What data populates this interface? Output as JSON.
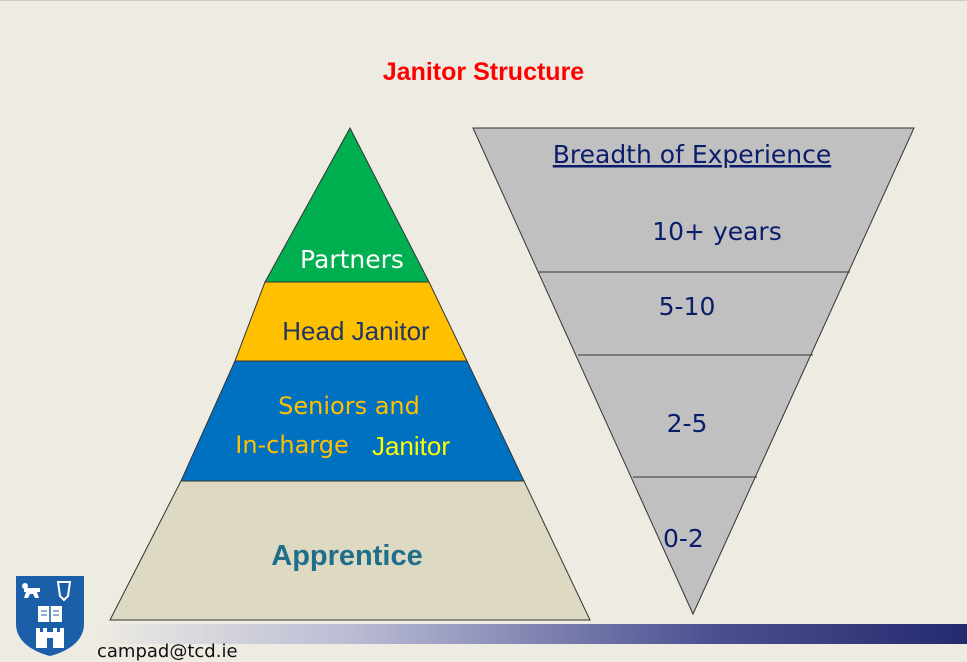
{
  "title": "Janitor Structure",
  "pyramid": {
    "levels": [
      "Partners",
      "Head Janitor",
      "Seniors and",
      "In-charge",
      "Janitor",
      "Apprentice"
    ]
  },
  "funnel": {
    "heading": "Breadth of Experience",
    "bands": [
      "10+ years",
      "5-10",
      "2-5",
      "0-2"
    ]
  },
  "footer": {
    "email": "campad@tcd.ie"
  },
  "colors": {
    "title": "#ff0000",
    "partners": "#00b050",
    "head_janitor": "#ffc000",
    "seniors": "#0070c0",
    "apprentice": "#ddd9c3",
    "funnel": "#c0c0c0",
    "heading_text": "#0b1d6a"
  }
}
